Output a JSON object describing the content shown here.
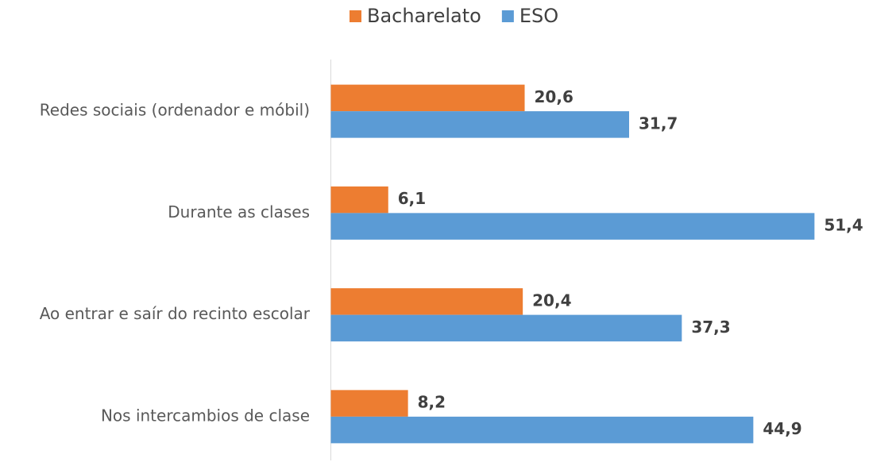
{
  "chart_data": {
    "type": "bar",
    "orientation": "horizontal",
    "categories": [
      "Redes sociais (ordenador e móbil)",
      "Durante as clases",
      "Ao entrar e saír do recinto escolar",
      "Nos intercambios de clase"
    ],
    "series": [
      {
        "name": "Bacharelato",
        "color": "#ed7d31",
        "values": [
          20.6,
          6.1,
          20.4,
          8.2
        ],
        "value_labels": [
          "20,6",
          "6,1",
          "20,4",
          "8,2"
        ]
      },
      {
        "name": "ESO",
        "color": "#5b9bd5",
        "values": [
          31.7,
          51.4,
          37.3,
          44.9
        ],
        "value_labels": [
          "31,7",
          "51,4",
          "37,3",
          "44,9"
        ]
      }
    ],
    "xlim": [
      0,
      55
    ],
    "legend": "top"
  }
}
